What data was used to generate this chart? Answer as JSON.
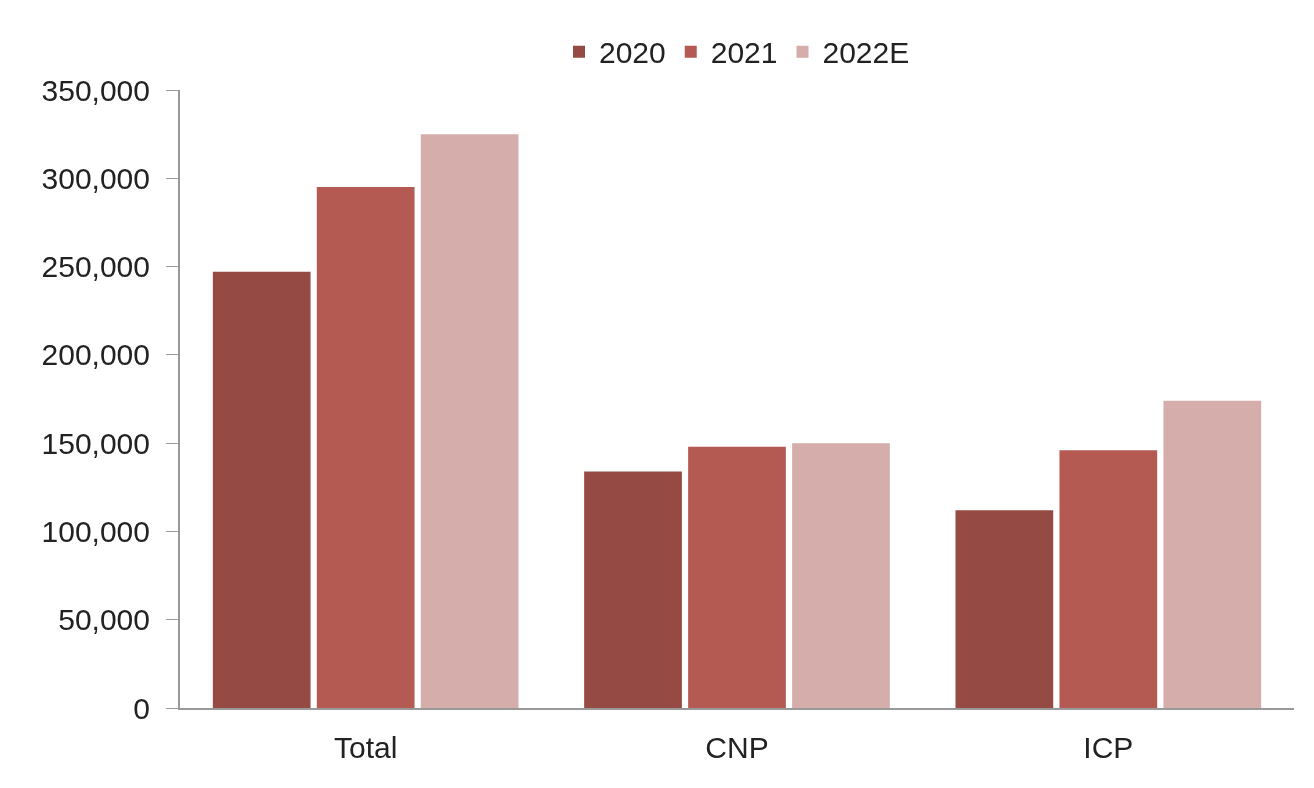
{
  "chart_data": {
    "type": "bar",
    "categories": [
      "Total",
      "CNP",
      "ICP"
    ],
    "series": [
      {
        "name": "2020",
        "color": "#954a43",
        "values": [
          247000,
          134000,
          112000
        ]
      },
      {
        "name": "2021",
        "color": "#b55a53",
        "values": [
          295000,
          148000,
          146000
        ]
      },
      {
        "name": "2022E",
        "color": "#d5aeab",
        "values": [
          325000,
          150000,
          174000
        ]
      }
    ],
    "ylim": [
      0,
      350000
    ],
    "yticks": [
      {
        "value": 0,
        "label": "0"
      },
      {
        "value": 50000,
        "label": "50,000"
      },
      {
        "value": 100000,
        "label": "100,000"
      },
      {
        "value": 150000,
        "label": "150,000"
      },
      {
        "value": 200000,
        "label": "200,000"
      },
      {
        "value": 250000,
        "label": "250,000"
      },
      {
        "value": 300000,
        "label": "300,000"
      },
      {
        "value": 350000,
        "label": "350,000"
      }
    ],
    "legend": "top"
  }
}
